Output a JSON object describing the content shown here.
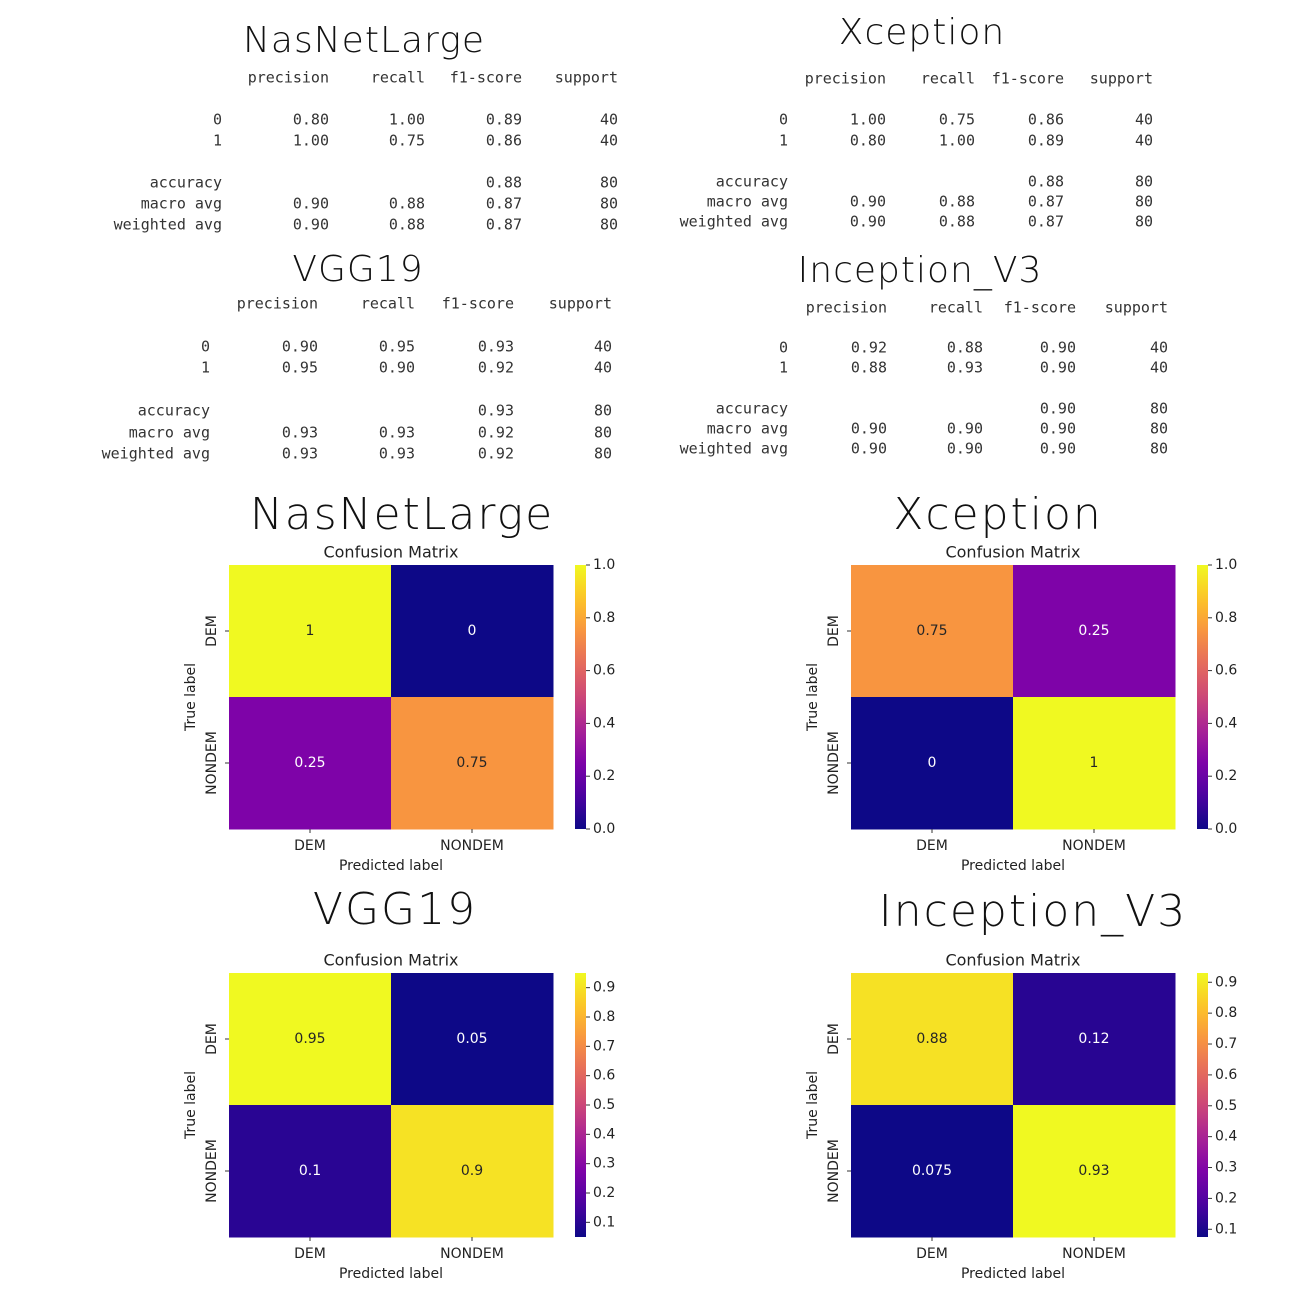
{
  "reports": [
    {
      "title": "NasNetLarge",
      "columns": [
        "precision",
        "recall",
        "f1-score",
        "support"
      ],
      "rows": [
        {
          "label": "0",
          "cells": [
            "0.80",
            "1.00",
            "0.89",
            "40"
          ]
        },
        {
          "label": "1",
          "cells": [
            "1.00",
            "0.75",
            "0.86",
            "40"
          ]
        },
        {
          "label": "accuracy",
          "cells": [
            null,
            null,
            "0.88",
            "80"
          ]
        },
        {
          "label": "macro avg",
          "cells": [
            "0.90",
            "0.88",
            "0.87",
            "80"
          ]
        },
        {
          "label": "weighted avg",
          "cells": [
            "0.90",
            "0.88",
            "0.87",
            "80"
          ]
        }
      ]
    },
    {
      "title": "Xception",
      "columns": [
        "precision",
        "recall",
        "f1-score",
        "support"
      ],
      "rows": [
        {
          "label": "0",
          "cells": [
            "1.00",
            "0.75",
            "0.86",
            "40"
          ]
        },
        {
          "label": "1",
          "cells": [
            "0.80",
            "1.00",
            "0.89",
            "40"
          ]
        },
        {
          "label": "accuracy",
          "cells": [
            null,
            null,
            "0.88",
            "80"
          ]
        },
        {
          "label": "macro avg",
          "cells": [
            "0.90",
            "0.88",
            "0.87",
            "80"
          ]
        },
        {
          "label": "weighted avg",
          "cells": [
            "0.90",
            "0.88",
            "0.87",
            "80"
          ]
        }
      ]
    },
    {
      "title": "VGG19",
      "columns": [
        "precision",
        "recall",
        "f1-score",
        "support"
      ],
      "rows": [
        {
          "label": "0",
          "cells": [
            "0.90",
            "0.95",
            "0.93",
            "40"
          ]
        },
        {
          "label": "1",
          "cells": [
            "0.95",
            "0.90",
            "0.92",
            "40"
          ]
        },
        {
          "label": "accuracy",
          "cells": [
            null,
            null,
            "0.93",
            "80"
          ]
        },
        {
          "label": "macro avg",
          "cells": [
            "0.93",
            "0.93",
            "0.92",
            "80"
          ]
        },
        {
          "label": "weighted avg",
          "cells": [
            "0.93",
            "0.93",
            "0.92",
            "80"
          ]
        }
      ]
    },
    {
      "title": "Inception_V3",
      "columns": [
        "precision",
        "recall",
        "f1-score",
        "support"
      ],
      "rows": [
        {
          "label": "0",
          "cells": [
            "0.92",
            "0.88",
            "0.90",
            "40"
          ]
        },
        {
          "label": "1",
          "cells": [
            "0.88",
            "0.93",
            "0.90",
            "40"
          ]
        },
        {
          "label": "accuracy",
          "cells": [
            null,
            null,
            "0.90",
            "80"
          ]
        },
        {
          "label": "macro avg",
          "cells": [
            "0.90",
            "0.90",
            "0.90",
            "80"
          ]
        },
        {
          "label": "weighted avg",
          "cells": [
            "0.90",
            "0.90",
            "0.90",
            "80"
          ]
        }
      ]
    }
  ],
  "chart_data": [
    {
      "type": "heatmap",
      "heading": "NasNetLarge",
      "title": "Confusion Matrix",
      "x_label": "Predicted label",
      "y_label": "True label",
      "x_categories": [
        "DEM",
        "NONDEM"
      ],
      "y_categories": [
        "DEM",
        "NONDEM"
      ],
      "values": [
        [
          1,
          0
        ],
        [
          0.25,
          0.75
        ]
      ],
      "colormap": "plasma",
      "zlim": [
        0,
        1
      ],
      "zticks": [
        {
          "value": 0,
          "label": "0.0"
        },
        0.2,
        0.4,
        0.6,
        0.8,
        {
          "value": 1,
          "label": "1.0"
        }
      ]
    },
    {
      "type": "heatmap",
      "heading": "Xception",
      "title": "Confusion Matrix",
      "x_label": "Predicted label",
      "y_label": "True label",
      "x_categories": [
        "DEM",
        "NONDEM"
      ],
      "y_categories": [
        "DEM",
        "NONDEM"
      ],
      "values": [
        [
          0.75,
          0.25
        ],
        [
          0,
          1
        ]
      ],
      "colormap": "plasma",
      "zlim": [
        0,
        1
      ],
      "zticks": [
        {
          "value": 0,
          "label": "0.0"
        },
        0.2,
        0.4,
        0.6,
        0.8,
        {
          "value": 1,
          "label": "1.0"
        }
      ]
    },
    {
      "type": "heatmap",
      "heading": "VGG19",
      "title": "Confusion Matrix",
      "x_label": "Predicted label",
      "y_label": "True label",
      "x_categories": [
        "DEM",
        "NONDEM"
      ],
      "y_categories": [
        "DEM",
        "NONDEM"
      ],
      "values": [
        [
          0.95,
          0.05
        ],
        [
          0.1,
          0.9
        ]
      ],
      "colormap": "plasma",
      "zlim": [
        0.05,
        0.95
      ],
      "zticks": [
        0.1,
        0.2,
        0.3,
        0.4,
        0.5,
        0.6,
        0.7,
        0.8,
        0.9
      ]
    },
    {
      "type": "heatmap",
      "heading": "Inception_V3",
      "title": "Confusion Matrix",
      "x_label": "Predicted label",
      "y_label": "True label",
      "x_categories": [
        "DEM",
        "NONDEM"
      ],
      "y_categories": [
        "DEM",
        "NONDEM"
      ],
      "values": [
        [
          0.88,
          0.12
        ],
        [
          0.075,
          0.93
        ]
      ],
      "colormap": "plasma",
      "zlim": [
        0.075,
        0.93
      ],
      "zticks": [
        0.1,
        0.2,
        0.3,
        0.4,
        0.5,
        0.6,
        0.7,
        0.8,
        0.9
      ]
    }
  ]
}
